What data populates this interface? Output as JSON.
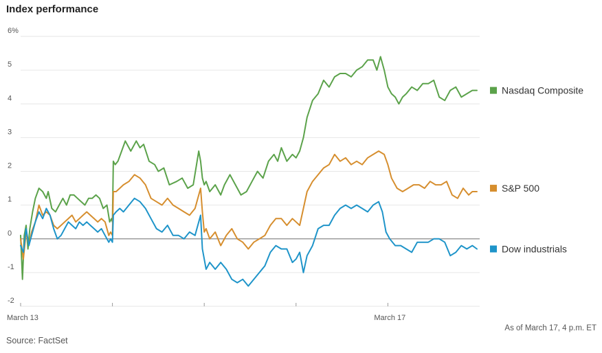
{
  "chart_data": {
    "type": "line",
    "title": "Index performance",
    "y_unit": "%",
    "ylim": [
      -2,
      6
    ],
    "y_ticks": [
      6,
      5,
      4,
      3,
      2,
      1,
      0,
      -1,
      -2
    ],
    "y_tick_labels": [
      "6%",
      "5",
      "4",
      "3",
      "2",
      "1",
      "0",
      "-1",
      "-2"
    ],
    "xlim": [
      0,
      5
    ],
    "x_day_boundaries": [
      1,
      2,
      3,
      4
    ],
    "x_tick_labels": [
      {
        "x": 0,
        "label": "March 13"
      },
      {
        "x": 4,
        "label": "March 17"
      }
    ],
    "grid": true,
    "legend_position": "right",
    "note": "As of March 17, 4 p.m. ET",
    "source": "Source: FactSet",
    "series": [
      {
        "name": "Nasdaq Composite",
        "color": "#5ba24a",
        "x": [
          0,
          0.02,
          0.04,
          0.06,
          0.08,
          0.1,
          0.13,
          0.16,
          0.2,
          0.24,
          0.28,
          0.3,
          0.34,
          0.38,
          0.42,
          0.46,
          0.5,
          0.54,
          0.58,
          0.62,
          0.66,
          0.7,
          0.74,
          0.78,
          0.82,
          0.86,
          0.9,
          0.94,
          0.97,
          0.99,
          1.0,
          1.01,
          1.03,
          1.06,
          1.1,
          1.14,
          1.2,
          1.26,
          1.3,
          1.34,
          1.4,
          1.46,
          1.5,
          1.56,
          1.62,
          1.7,
          1.76,
          1.82,
          1.88,
          1.94,
          1.96,
          1.98,
          2.0,
          2.02,
          2.06,
          2.12,
          2.18,
          2.22,
          2.28,
          2.34,
          2.4,
          2.46,
          2.52,
          2.58,
          2.64,
          2.7,
          2.76,
          2.8,
          2.84,
          2.9,
          2.96,
          3.0,
          3.04,
          3.08,
          3.12,
          3.18,
          3.24,
          3.3,
          3.36,
          3.42,
          3.48,
          3.54,
          3.6,
          3.66,
          3.72,
          3.78,
          3.84,
          3.88,
          3.92,
          3.96,
          4.0,
          4.04,
          4.08,
          4.12,
          4.16,
          4.2,
          4.26,
          4.32,
          4.38,
          4.44,
          4.5,
          4.56,
          4.62,
          4.68,
          4.74,
          4.8,
          4.86,
          4.92,
          4.97
        ],
        "values": [
          0.1,
          -1.2,
          0.1,
          0.4,
          -0.3,
          0.3,
          0.8,
          1.2,
          1.5,
          1.4,
          1.2,
          1.4,
          0.9,
          0.8,
          1.0,
          1.2,
          1.0,
          1.3,
          1.3,
          1.2,
          1.1,
          1.0,
          1.2,
          1.2,
          1.3,
          1.2,
          0.9,
          1.0,
          0.5,
          0.6,
          0.5,
          2.3,
          2.2,
          2.3,
          2.6,
          2.9,
          2.6,
          2.9,
          2.7,
          2.8,
          2.3,
          2.2,
          2.0,
          2.1,
          1.6,
          1.7,
          1.8,
          1.5,
          1.6,
          2.6,
          2.3,
          1.8,
          1.6,
          1.7,
          1.4,
          1.6,
          1.3,
          1.6,
          1.9,
          1.6,
          1.3,
          1.4,
          1.7,
          2.0,
          1.8,
          2.3,
          2.5,
          2.3,
          2.7,
          2.3,
          2.5,
          2.4,
          2.6,
          3.0,
          3.6,
          4.1,
          4.3,
          4.7,
          4.5,
          4.8,
          4.9,
          4.9,
          4.8,
          5.0,
          5.1,
          5.3,
          5.3,
          5.0,
          5.4,
          5.0,
          4.5,
          4.3,
          4.2,
          4.0,
          4.2,
          4.3,
          4.5,
          4.4,
          4.6,
          4.6,
          4.7,
          4.2,
          4.1,
          4.4,
          4.5,
          4.2,
          4.3,
          4.4,
          4.4
        ]
      },
      {
        "name": "S&P 500",
        "color": "#d68e2e",
        "x": [
          0,
          0.03,
          0.06,
          0.09,
          0.12,
          0.16,
          0.2,
          0.24,
          0.28,
          0.32,
          0.36,
          0.4,
          0.44,
          0.48,
          0.52,
          0.56,
          0.6,
          0.64,
          0.68,
          0.72,
          0.76,
          0.8,
          0.84,
          0.88,
          0.92,
          0.96,
          0.98,
          1.0,
          1.01,
          1.04,
          1.08,
          1.12,
          1.18,
          1.24,
          1.3,
          1.36,
          1.42,
          1.48,
          1.54,
          1.6,
          1.66,
          1.72,
          1.78,
          1.84,
          1.9,
          1.96,
          1.98,
          2.0,
          2.02,
          2.06,
          2.12,
          2.18,
          2.24,
          2.3,
          2.36,
          2.42,
          2.48,
          2.54,
          2.6,
          2.66,
          2.72,
          2.78,
          2.84,
          2.9,
          2.96,
          3.0,
          3.04,
          3.08,
          3.12,
          3.18,
          3.24,
          3.3,
          3.36,
          3.42,
          3.48,
          3.54,
          3.6,
          3.66,
          3.72,
          3.78,
          3.84,
          3.9,
          3.96,
          4.0,
          4.04,
          4.1,
          4.16,
          4.22,
          4.28,
          4.34,
          4.4,
          4.46,
          4.52,
          4.58,
          4.64,
          4.7,
          4.76,
          4.82,
          4.88,
          4.92,
          4.97
        ],
        "values": [
          0.0,
          -0.6,
          0.2,
          -0.2,
          0.2,
          0.5,
          1.0,
          0.7,
          0.8,
          0.7,
          0.4,
          0.3,
          0.4,
          0.5,
          0.6,
          0.7,
          0.5,
          0.6,
          0.7,
          0.8,
          0.7,
          0.6,
          0.5,
          0.6,
          0.5,
          0.1,
          0.2,
          0.1,
          1.4,
          1.4,
          1.5,
          1.6,
          1.7,
          1.9,
          1.8,
          1.6,
          1.2,
          1.1,
          1.0,
          1.2,
          1.0,
          0.9,
          0.8,
          0.7,
          0.9,
          1.5,
          0.8,
          0.2,
          0.3,
          0.0,
          0.2,
          -0.2,
          0.1,
          0.3,
          0.0,
          -0.1,
          -0.3,
          -0.1,
          0.0,
          0.1,
          0.4,
          0.6,
          0.6,
          0.4,
          0.6,
          0.5,
          0.4,
          0.9,
          1.4,
          1.7,
          1.9,
          2.1,
          2.2,
          2.5,
          2.3,
          2.4,
          2.2,
          2.3,
          2.2,
          2.4,
          2.5,
          2.6,
          2.5,
          2.2,
          1.8,
          1.5,
          1.4,
          1.5,
          1.6,
          1.6,
          1.5,
          1.7,
          1.6,
          1.6,
          1.7,
          1.3,
          1.2,
          1.5,
          1.3,
          1.4,
          1.4
        ]
      },
      {
        "name": "Dow industrials",
        "color": "#1e94c9",
        "x": [
          0,
          0.03,
          0.06,
          0.09,
          0.12,
          0.16,
          0.2,
          0.24,
          0.28,
          0.32,
          0.36,
          0.4,
          0.44,
          0.48,
          0.52,
          0.56,
          0.6,
          0.64,
          0.68,
          0.72,
          0.76,
          0.8,
          0.84,
          0.88,
          0.92,
          0.96,
          0.98,
          1.0,
          1.01,
          1.04,
          1.08,
          1.12,
          1.18,
          1.24,
          1.3,
          1.36,
          1.42,
          1.48,
          1.54,
          1.6,
          1.66,
          1.72,
          1.78,
          1.84,
          1.9,
          1.96,
          1.98,
          2.0,
          2.02,
          2.06,
          2.12,
          2.18,
          2.24,
          2.3,
          2.36,
          2.42,
          2.48,
          2.54,
          2.6,
          2.66,
          2.72,
          2.78,
          2.84,
          2.9,
          2.96,
          3.0,
          3.04,
          3.08,
          3.12,
          3.18,
          3.24,
          3.3,
          3.36,
          3.42,
          3.48,
          3.54,
          3.6,
          3.66,
          3.72,
          3.78,
          3.84,
          3.9,
          3.94,
          3.98,
          4.02,
          4.08,
          4.14,
          4.2,
          4.26,
          4.32,
          4.38,
          4.44,
          4.5,
          4.56,
          4.62,
          4.68,
          4.74,
          4.8,
          4.86,
          4.92,
          4.97
        ],
        "values": [
          -0.2,
          -0.4,
          0.3,
          -0.2,
          0.1,
          0.5,
          0.8,
          0.6,
          0.9,
          0.7,
          0.3,
          0.0,
          0.1,
          0.3,
          0.5,
          0.4,
          0.3,
          0.5,
          0.4,
          0.5,
          0.4,
          0.3,
          0.2,
          0.3,
          0.1,
          -0.1,
          0.0,
          -0.1,
          0.7,
          0.8,
          0.9,
          0.8,
          1.0,
          1.2,
          1.1,
          0.9,
          0.6,
          0.3,
          0.2,
          0.4,
          0.1,
          0.1,
          0.0,
          0.2,
          0.1,
          0.7,
          -0.3,
          -0.6,
          -0.9,
          -0.7,
          -0.9,
          -0.7,
          -0.9,
          -1.2,
          -1.3,
          -1.2,
          -1.4,
          -1.2,
          -1.0,
          -0.8,
          -0.4,
          -0.2,
          -0.3,
          -0.3,
          -0.7,
          -0.6,
          -0.4,
          -1.0,
          -0.5,
          -0.2,
          0.3,
          0.4,
          0.4,
          0.7,
          0.9,
          1.0,
          0.9,
          1.0,
          0.9,
          0.8,
          1.0,
          1.1,
          0.8,
          0.2,
          0.0,
          -0.2,
          -0.2,
          -0.3,
          -0.4,
          -0.1,
          -0.1,
          -0.1,
          0.0,
          0.0,
          -0.1,
          -0.5,
          -0.4,
          -0.2,
          -0.3,
          -0.2,
          -0.3
        ]
      }
    ]
  }
}
